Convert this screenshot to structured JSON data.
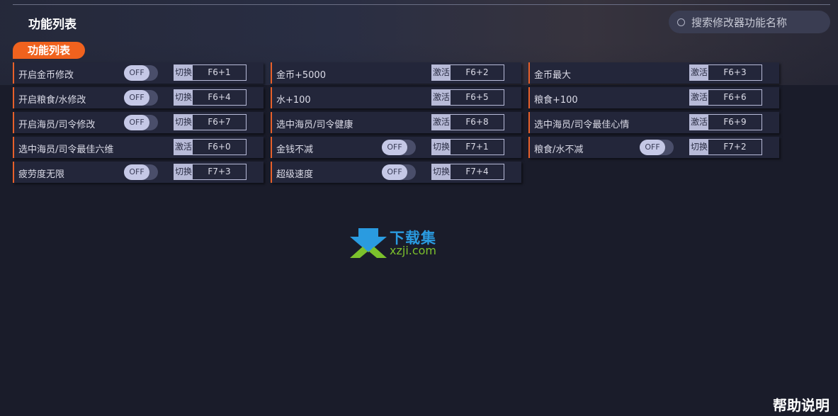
{
  "header": {
    "title": "功能列表",
    "search_placeholder": "搜索修改器功能名称"
  },
  "tab": "功能列表",
  "rows": [
    {
      "label": "开启金币修改",
      "toggle": "OFF",
      "action": "切换",
      "key": "F6+1"
    },
    {
      "label": "金币+5000",
      "toggle": null,
      "action": "激活",
      "key": "F6+2"
    },
    {
      "label": "金币最大",
      "toggle": null,
      "action": "激活",
      "key": "F6+3"
    },
    {
      "label": "开启粮食/水修改",
      "toggle": "OFF",
      "action": "切换",
      "key": "F6+4"
    },
    {
      "label": "水+100",
      "toggle": null,
      "action": "激活",
      "key": "F6+5"
    },
    {
      "label": "粮食+100",
      "toggle": null,
      "action": "激活",
      "key": "F6+6"
    },
    {
      "label": "开启海员/司令修改",
      "toggle": "OFF",
      "action": "切换",
      "key": "F6+7"
    },
    {
      "label": "选中海员/司令健康",
      "toggle": null,
      "action": "激活",
      "key": "F6+8"
    },
    {
      "label": "选中海员/司令最佳心情",
      "toggle": null,
      "action": "激活",
      "key": "F6+9"
    },
    {
      "label": "选中海员/司令最佳六维",
      "toggle": null,
      "action": "激活",
      "key": "F6+0"
    },
    {
      "label": "金钱不减",
      "toggle": "OFF",
      "action": "切换",
      "key": "F7+1"
    },
    {
      "label": "粮食/水不减",
      "toggle": "OFF",
      "action": "切换",
      "key": "F7+2"
    },
    {
      "label": "疲劳度无限",
      "toggle": "OFF",
      "action": "切换",
      "key": "F7+3"
    },
    {
      "label": "超级速度",
      "toggle": "OFF",
      "action": "切换",
      "key": "F7+4"
    }
  ],
  "watermark": {
    "cn": "下载集",
    "url": "xzji.com"
  },
  "help": "帮助说明",
  "colors": {
    "accent": "#f0621e",
    "background": "#1a1c2a",
    "row": "#23263a"
  }
}
